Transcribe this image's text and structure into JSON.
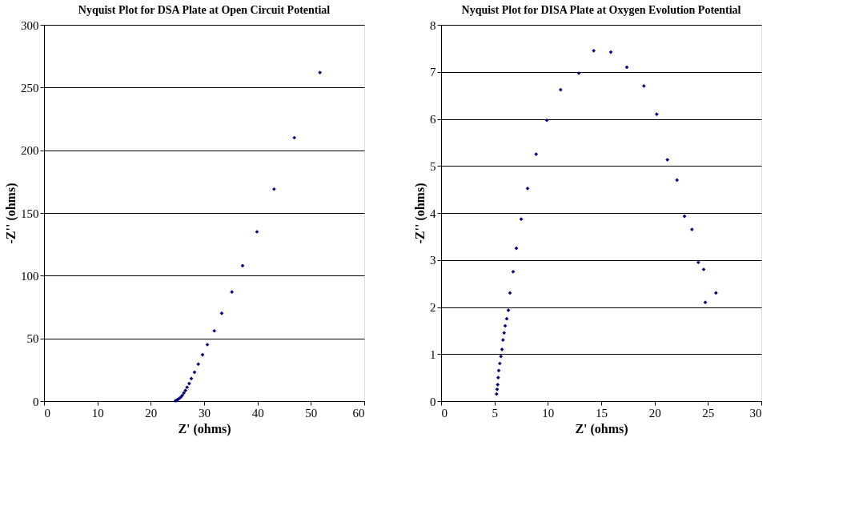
{
  "chart_data": [
    {
      "type": "scatter",
      "title": "Nyquist Plot for DSA Plate at Open Circuit Potential",
      "xlabel": "Z' (ohms)",
      "ylabel": "-Z'' (ohms)",
      "x": [
        24.6,
        24.8,
        25.0,
        25.3,
        25.6,
        25.9,
        26.2,
        26.5,
        26.8,
        27.2,
        27.6,
        28.2,
        28.9,
        29.7,
        30.6,
        31.9,
        33.3,
        35.2,
        37.2,
        39.9,
        43.1,
        46.9,
        51.7
      ],
      "series": [
        {
          "color": "#000080",
          "values": [
            0.2,
            0.5,
            1,
            2,
            3,
            4.5,
            6.5,
            8.5,
            11,
            14,
            18,
            23,
            29.5,
            37,
            45,
            56,
            70,
            87,
            108,
            135,
            169,
            210,
            262
          ]
        }
      ],
      "xlim": [
        0,
        60
      ],
      "xticks": [
        0,
        10,
        20,
        30,
        40,
        50,
        60
      ],
      "ylim": [
        0,
        300
      ],
      "yticks": [
        0,
        50,
        100,
        150,
        200,
        250,
        300
      ],
      "grid": "y",
      "marker": "diamond"
    },
    {
      "type": "scatter",
      "title": "Nyquist Plot for DISA Plate at Oxygen Evolution Potential",
      "xlabel": "Z' (ohms)",
      "ylabel": "-Z'' (ohms)",
      "x": [
        5.2,
        5.25,
        5.3,
        5.35,
        5.4,
        5.5,
        5.6,
        5.7,
        5.8,
        5.9,
        6.0,
        6.15,
        6.3,
        6.45,
        6.75,
        7.05,
        7.5,
        8.1,
        8.9,
        9.9,
        11.2,
        12.9,
        14.3,
        15.9,
        17.4,
        19.0,
        20.2,
        21.2,
        22.1,
        22.8,
        23.5,
        24.1,
        24.6,
        24.75,
        25.75
      ],
      "series": [
        {
          "color": "#000080",
          "values": [
            0.15,
            0.25,
            0.35,
            0.5,
            0.65,
            0.8,
            0.95,
            1.1,
            1.3,
            1.45,
            1.6,
            1.75,
            1.93,
            2.3,
            2.75,
            3.25,
            3.87,
            4.52,
            5.25,
            5.97,
            6.62,
            6.97,
            7.45,
            7.42,
            7.1,
            6.7,
            6.1,
            5.13,
            4.7,
            3.93,
            3.65,
            2.95,
            2.8,
            2.1,
            2.3
          ]
        }
      ],
      "xlim": [
        0,
        30
      ],
      "xticks": [
        0,
        5,
        10,
        15,
        20,
        25,
        30
      ],
      "ylim": [
        0,
        8
      ],
      "yticks": [
        0,
        1,
        2,
        3,
        4,
        5,
        6,
        7,
        8
      ],
      "grid": "y",
      "marker": "diamond"
    }
  ]
}
